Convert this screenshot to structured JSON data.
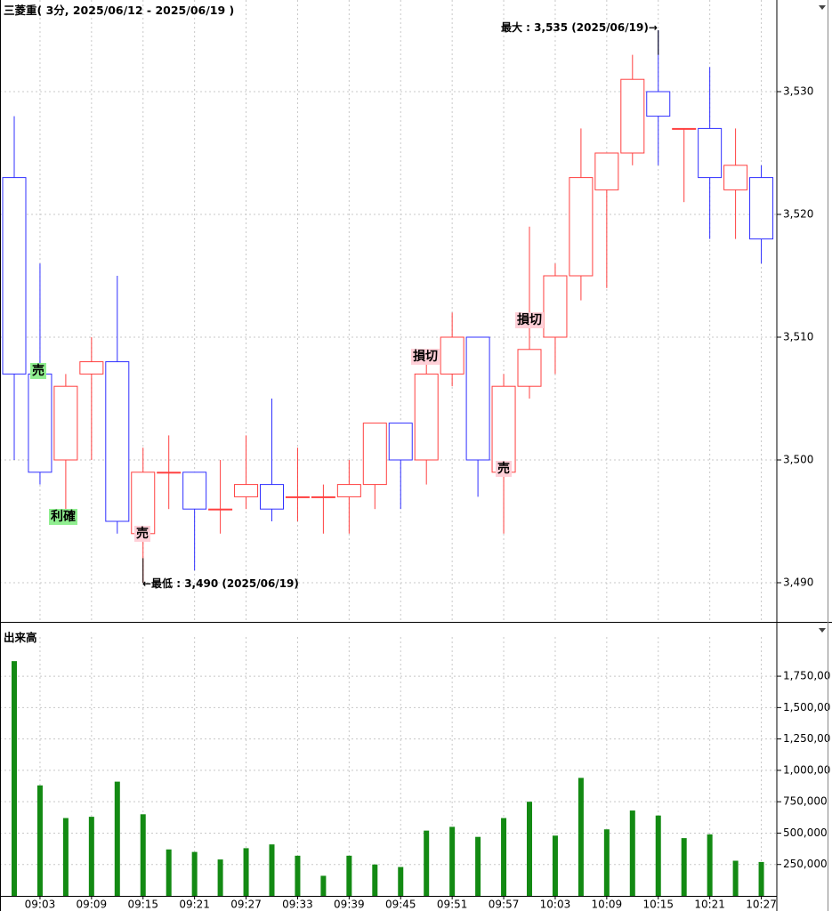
{
  "header": {
    "title": "三菱重( 3分, 2025/06/12 - 2025/06/19 )",
    "volume_label": "出来高"
  },
  "annotations": {
    "max_label": "最大 : 3,535 (2025/06/19)→",
    "min_label": "←最低 : 3,490 (2025/06/19)"
  },
  "signals": [
    {
      "text": "売",
      "style": "green"
    },
    {
      "text": "利確",
      "style": "green"
    },
    {
      "text": "売",
      "style": "pink"
    },
    {
      "text": "損切",
      "style": "pink"
    },
    {
      "text": "売",
      "style": "pink"
    },
    {
      "text": "損切",
      "style": "pink"
    }
  ],
  "colors": {
    "up": "#ff4040",
    "down": "#3030ff",
    "volume": "#138a13",
    "grid": "#c8c8c8",
    "sig_green": "#90ee90",
    "sig_pink": "#ffd0d8"
  },
  "chart_data": [
    {
      "type": "candlestick",
      "title": "三菱重( 3分, 2025/06/12 - 2025/06/19 )",
      "y_ticks": [
        "3,490",
        "3,500",
        "3,510",
        "3,520",
        "3,530"
      ],
      "y_tick_values": [
        3490,
        3500,
        3510,
        3520,
        3530
      ],
      "ylim": [
        3486.5,
        3537.5
      ],
      "x_ticks": [
        "09:03",
        "09:09",
        "09:15",
        "09:21",
        "09:27",
        "09:33",
        "09:39",
        "09:45",
        "09:51",
        "09:57",
        "10:03",
        "10:09",
        "10:15",
        "10:21",
        "10:27"
      ],
      "x_tick_bar_index": [
        1,
        3,
        5,
        7,
        9,
        11,
        13,
        15,
        17,
        19,
        21,
        23,
        25,
        27,
        29
      ],
      "candles": [
        {
          "open": 3523,
          "high": 3528,
          "low": 3500,
          "close": 3507
        },
        {
          "open": 3507,
          "high": 3516,
          "low": 3498,
          "close": 3499
        },
        {
          "open": 3500,
          "high": 3507,
          "low": 3496,
          "close": 3506
        },
        {
          "open": 3507,
          "high": 3510,
          "low": 3500,
          "close": 3508
        },
        {
          "open": 3508,
          "high": 3515,
          "low": 3494,
          "close": 3495
        },
        {
          "open": 3494,
          "high": 3501,
          "low": 3490,
          "close": 3499
        },
        {
          "open": 3499,
          "high": 3502,
          "low": 3496,
          "close": 3499
        },
        {
          "open": 3499,
          "high": 3499,
          "low": 3491,
          "close": 3496
        },
        {
          "open": 3496,
          "high": 3500,
          "low": 3494,
          "close": 3496
        },
        {
          "open": 3497,
          "high": 3502,
          "low": 3496,
          "close": 3498
        },
        {
          "open": 3498,
          "high": 3505,
          "low": 3495,
          "close": 3496
        },
        {
          "open": 3497,
          "high": 3501,
          "low": 3495,
          "close": 3497
        },
        {
          "open": 3497,
          "high": 3498,
          "low": 3494,
          "close": 3497
        },
        {
          "open": 3497,
          "high": 3500,
          "low": 3494,
          "close": 3498
        },
        {
          "open": 3498,
          "high": 3503,
          "low": 3496,
          "close": 3503
        },
        {
          "open": 3503,
          "high": 3503,
          "low": 3496,
          "close": 3500
        },
        {
          "open": 3500,
          "high": 3508,
          "low": 3498,
          "close": 3507
        },
        {
          "open": 3507,
          "high": 3512,
          "low": 3506,
          "close": 3510
        },
        {
          "open": 3510,
          "high": 3510,
          "low": 3497,
          "close": 3500
        },
        {
          "open": 3499,
          "high": 3507,
          "low": 3494,
          "close": 3506
        },
        {
          "open": 3506,
          "high": 3519,
          "low": 3505,
          "close": 3509
        },
        {
          "open": 3510,
          "high": 3516,
          "low": 3507,
          "close": 3515
        },
        {
          "open": 3515,
          "high": 3527,
          "low": 3513,
          "close": 3523
        },
        {
          "open": 3522,
          "high": 3525,
          "low": 3514,
          "close": 3525
        },
        {
          "open": 3525,
          "high": 3533,
          "low": 3524,
          "close": 3531
        },
        {
          "open": 3530,
          "high": 3535,
          "low": 3524,
          "close": 3528
        },
        {
          "open": 3527,
          "high": 3527,
          "low": 3521,
          "close": 3527
        },
        {
          "open": 3527,
          "high": 3532,
          "low": 3518,
          "close": 3523
        },
        {
          "open": 3522,
          "high": 3527,
          "low": 3518,
          "close": 3524
        },
        {
          "open": 3523,
          "high": 3524,
          "low": 3516,
          "close": 3518
        }
      ]
    },
    {
      "type": "bar",
      "title": "出来高",
      "y_ticks": [
        "250,000",
        "500,000",
        "750,000",
        "1,000,00",
        "1,250,00",
        "1,500,00",
        "1,750,00"
      ],
      "y_tick_values": [
        250000,
        500000,
        750000,
        1000000,
        1250000,
        1500000,
        1750000
      ],
      "ylim": [
        0,
        2060000
      ],
      "values": [
        1870000,
        880000,
        620000,
        630000,
        910000,
        650000,
        370000,
        350000,
        290000,
        380000,
        410000,
        320000,
        160000,
        320000,
        250000,
        230000,
        520000,
        550000,
        470000,
        620000,
        750000,
        480000,
        940000,
        530000,
        680000,
        640000,
        460000,
        490000,
        280000,
        270000
      ]
    }
  ]
}
